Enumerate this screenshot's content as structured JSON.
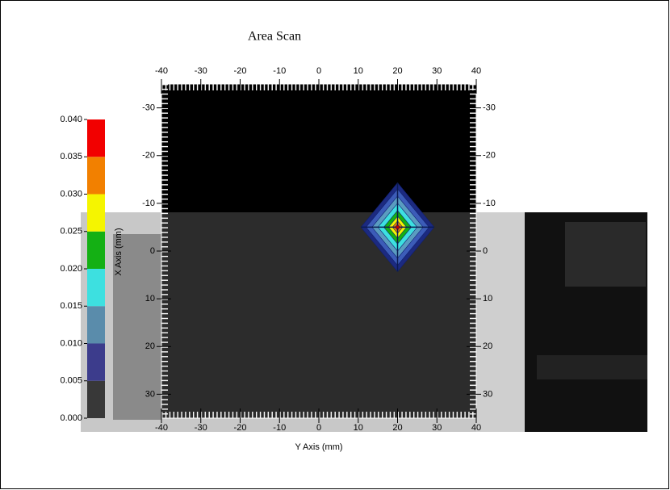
{
  "chart_data": {
    "type": "contour",
    "title": "Area Scan",
    "xlabel": "Y Axis (mm)",
    "ylabel": "X Axis (mm)",
    "xlim": [
      -40,
      40
    ],
    "xticks": [
      -40,
      -30,
      -20,
      -10,
      0,
      10,
      20,
      30,
      40
    ],
    "ylim": [
      -35,
      35
    ],
    "yticks": [
      -30,
      -20,
      -10,
      0,
      10,
      20,
      30
    ],
    "y_inverted": true,
    "colorbar": {
      "lim": [
        0,
        0.04
      ],
      "ticks": [
        {
          "value": 0,
          "label": "0.000"
        },
        {
          "value": 0.005,
          "label": "0.005"
        },
        {
          "value": 0.01,
          "label": "0.010"
        },
        {
          "value": 0.015,
          "label": "0.015"
        },
        {
          "value": 0.02,
          "label": "0.020"
        },
        {
          "value": 0.025,
          "label": "0.025"
        },
        {
          "value": 0.03,
          "label": "0.030"
        },
        {
          "value": 0.035,
          "label": "0.035"
        },
        {
          "value": 0.04,
          "label": "0.040"
        }
      ],
      "colors": [
        "#383838",
        "#3c3c8c",
        "#5a8cab",
        "#3de0e0",
        "#14b014",
        "#f5f500",
        "#f28000",
        "#f20000"
      ]
    },
    "peak": {
      "x": 20,
      "y": -5,
      "value": 0.04
    },
    "contours": [
      {
        "level": 0.005,
        "half_width": 9.3,
        "color": "#1c2a80"
      },
      {
        "level": 0.01,
        "half_width": 8,
        "color": "#3c5cb8"
      },
      {
        "level": 0.015,
        "half_width": 6.5,
        "color": "#5a9cc0"
      },
      {
        "level": 0.02,
        "half_width": 5,
        "color": "#3de0e0"
      },
      {
        "level": 0.025,
        "half_width": 3.5,
        "color": "#14b014"
      },
      {
        "level": 0.03,
        "half_width": 2.3,
        "color": "#f5f500"
      },
      {
        "level": 0.035,
        "half_width": 1.3,
        "color": "#f28000"
      },
      {
        "level": 0.04,
        "half_width": 0.6,
        "color": "#f20000"
      }
    ]
  }
}
